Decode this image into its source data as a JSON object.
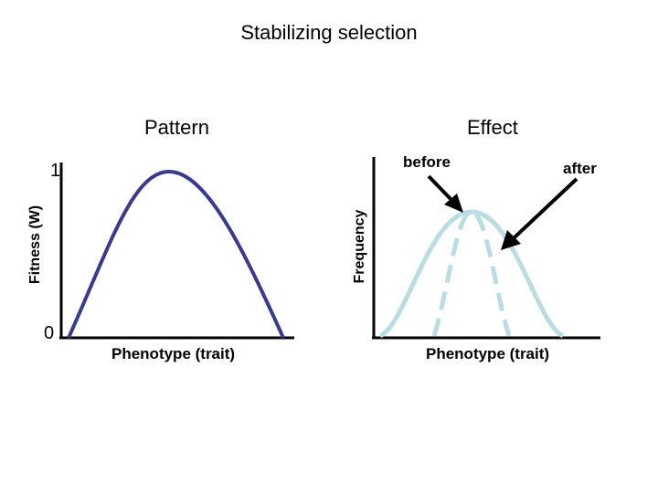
{
  "title": "Stabilizing selection",
  "pattern_panel": {
    "heading": "Pattern",
    "y_axis_label": "Fitness (W)",
    "y_tick_top": "1",
    "y_tick_bottom": "0",
    "x_axis_label": "Phenotype (trait)",
    "curve_color": "#3a3a8c"
  },
  "effect_panel": {
    "heading": "Effect",
    "y_axis_label": "Frequency",
    "x_axis_label": "Phenotype (trait)",
    "before_label": "before",
    "after_label": "after",
    "curve_color": "#b9dde3"
  }
}
